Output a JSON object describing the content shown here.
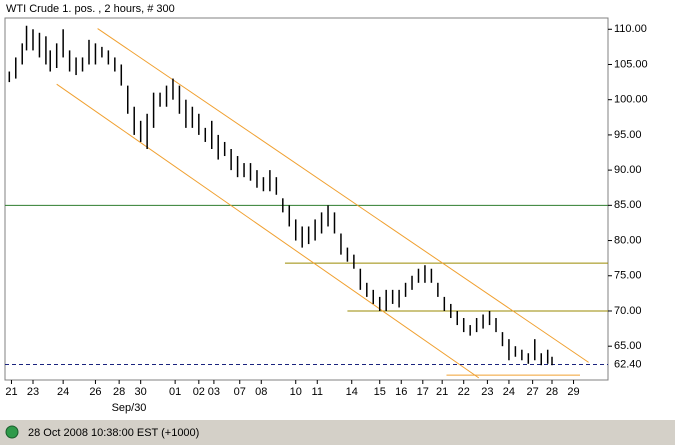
{
  "chart_data": {
    "type": "range-bar",
    "title": "WTI Crude 1. pos. , 2 hours, # 300",
    "status": "28 Oct 2008 10:38:00  EST (+1000)",
    "month_label": "Sep/30",
    "last_price": {
      "value": 62.4,
      "label": "62.40"
    },
    "xlim": [
      0,
      28
    ],
    "ylim": [
      60.2,
      111.6
    ],
    "xticks": [
      {
        "value": 0.3,
        "label": "21"
      },
      {
        "value": 1.3,
        "label": "23"
      },
      {
        "value": 2.7,
        "label": "24"
      },
      {
        "value": 4.2,
        "label": "26"
      },
      {
        "value": 5.3,
        "label": "28"
      },
      {
        "value": 6.3,
        "label": "30"
      },
      {
        "value": 7.9,
        "label": "01"
      },
      {
        "value": 9.0,
        "label": "02"
      },
      {
        "value": 9.7,
        "label": "03"
      },
      {
        "value": 10.9,
        "label": "07"
      },
      {
        "value": 11.9,
        "label": "08"
      },
      {
        "value": 13.5,
        "label": "10"
      },
      {
        "value": 14.5,
        "label": "11"
      },
      {
        "value": 16.1,
        "label": "14"
      },
      {
        "value": 17.4,
        "label": "15"
      },
      {
        "value": 18.4,
        "label": "16"
      },
      {
        "value": 19.4,
        "label": "17"
      },
      {
        "value": 20.3,
        "label": "21"
      },
      {
        "value": 21.3,
        "label": "22"
      },
      {
        "value": 22.4,
        "label": "23"
      },
      {
        "value": 23.4,
        "label": "24"
      },
      {
        "value": 24.5,
        "label": "27"
      },
      {
        "value": 25.4,
        "label": "28"
      },
      {
        "value": 26.4,
        "label": "29"
      }
    ],
    "yticks": [
      {
        "value": 65,
        "label": "65.00"
      },
      {
        "value": 70,
        "label": "70.00"
      },
      {
        "value": 75,
        "label": "75.00"
      },
      {
        "value": 80,
        "label": "80.00"
      },
      {
        "value": 85,
        "label": "85.00"
      },
      {
        "value": 90,
        "label": "90.00"
      },
      {
        "value": 95,
        "label": "95.00"
      },
      {
        "value": 100,
        "label": "100.00"
      },
      {
        "value": 105,
        "label": "105.00"
      },
      {
        "value": 110,
        "label": "110.00"
      }
    ],
    "color": "#000000",
    "x": [
      0.2,
      0.5,
      0.8,
      1.0,
      1.3,
      1.6,
      1.9,
      2.1,
      2.4,
      2.7,
      3.0,
      3.3,
      3.6,
      3.9,
      4.2,
      4.5,
      4.8,
      5.1,
      5.4,
      5.7,
      6.0,
      6.3,
      6.6,
      6.9,
      7.2,
      7.5,
      7.8,
      8.1,
      8.4,
      8.7,
      9.0,
      9.3,
      9.6,
      9.9,
      10.2,
      10.5,
      10.8,
      11.1,
      11.4,
      11.7,
      12.0,
      12.3,
      12.6,
      12.9,
      13.2,
      13.5,
      13.8,
      14.1,
      14.4,
      14.7,
      15.0,
      15.3,
      15.6,
      15.9,
      16.2,
      16.5,
      16.8,
      17.1,
      17.4,
      17.7,
      18.0,
      18.3,
      18.6,
      18.9,
      19.2,
      19.5,
      19.8,
      20.1,
      20.4,
      20.7,
      21.0,
      21.3,
      21.6,
      21.9,
      22.2,
      22.5,
      22.8,
      23.1,
      23.4,
      23.7,
      24.0,
      24.3,
      24.6,
      24.9,
      25.2,
      25.4
    ],
    "high": [
      104,
      106,
      108,
      110.5,
      110,
      109.5,
      109,
      107,
      108,
      110,
      107,
      106,
      106,
      108.5,
      108,
      107.5,
      107,
      106,
      105,
      102,
      99,
      97,
      98,
      101,
      101,
      102,
      103,
      102,
      100,
      99,
      98,
      96,
      97,
      95,
      94,
      93,
      92,
      91,
      91,
      90,
      89,
      90,
      89,
      86,
      85,
      83,
      82,
      82,
      83,
      84,
      85,
      84,
      81,
      79,
      78,
      76,
      74,
      73,
      72,
      73,
      73,
      73,
      74,
      75,
      76,
      76.5,
      76,
      74,
      72,
      71,
      70,
      69,
      68,
      69,
      69.5,
      70,
      69,
      67,
      66,
      65,
      64.5,
      64,
      66,
      64,
      64.5,
      63.5
    ],
    "low": [
      102.5,
      103,
      105,
      107,
      107,
      106,
      105,
      104,
      104.5,
      106,
      104,
      103.5,
      104,
      105,
      105,
      106,
      105,
      104,
      102,
      98,
      95,
      94,
      93,
      96,
      99,
      99,
      100,
      98,
      96,
      96,
      95,
      94,
      93,
      91.5,
      92,
      90,
      89,
      89,
      88.5,
      87.5,
      87,
      87,
      86.5,
      84,
      82,
      80,
      79,
      79.5,
      80,
      81,
      82,
      81,
      78,
      77,
      76,
      73,
      72,
      71,
      70,
      70,
      71,
      70.5,
      72,
      73,
      74,
      74,
      74,
      72,
      70,
      69,
      68,
      67,
      66.5,
      67,
      67.5,
      68,
      67,
      65,
      63,
      63.5,
      63,
      62.5,
      63,
      62.3,
      62.5,
      62.3
    ],
    "levels": [
      {
        "value": 85,
        "color": "#2e7d2e",
        "from": 0
      },
      {
        "value": 76.8,
        "color": "#9a8a00",
        "from": 13.0
      },
      {
        "value": 70,
        "color": "#9a8a00",
        "from": 15.9
      }
    ],
    "trendlines": [
      {
        "x": [
          4.3,
          27.1
        ],
        "y": [
          110.1,
          62.7
        ],
        "color": "#f0a030"
      },
      {
        "x": [
          2.4,
          22.0
        ],
        "y": [
          102.2,
          60.5
        ],
        "color": "#f0a030"
      },
      {
        "x": [
          20.5,
          26.7
        ],
        "y": [
          60.9,
          60.9
        ],
        "color": "#f0a030"
      }
    ]
  }
}
